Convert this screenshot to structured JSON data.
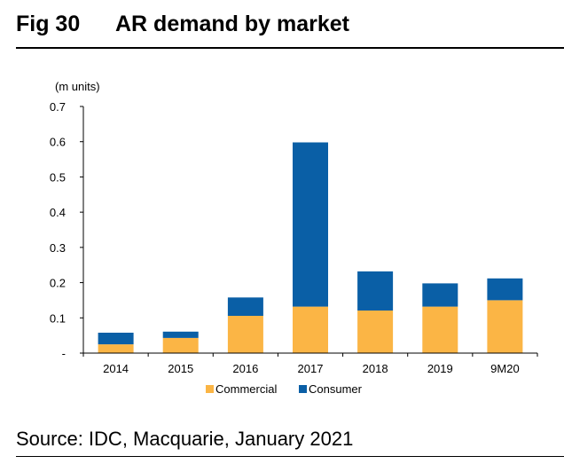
{
  "figure": {
    "label": "Fig 30",
    "title": "AR demand by market"
  },
  "source": "Source: IDC, Macquarie, January 2021",
  "colors": {
    "commercial": "#fbb545",
    "consumer": "#0a5fa6",
    "axis": "#000000"
  },
  "chart_data": {
    "type": "bar",
    "stacked": true,
    "title": "AR demand by market",
    "units_label": "(m units)",
    "categories": [
      "2014",
      "2015",
      "2016",
      "2017",
      "2018",
      "2019",
      "9M20"
    ],
    "series": [
      {
        "name": "Commercial",
        "values": [
          0.025,
          0.043,
          0.106,
          0.132,
          0.121,
          0.132,
          0.15
        ]
      },
      {
        "name": "Consumer",
        "values": [
          0.033,
          0.018,
          0.052,
          0.466,
          0.111,
          0.066,
          0.062
        ]
      }
    ],
    "xlabel": "",
    "ylabel": "(m units)",
    "ylim": [
      0,
      0.7
    ],
    "yticks": [
      0,
      0.1,
      0.2,
      0.3,
      0.4,
      0.5,
      0.6,
      0.7
    ],
    "ytick_labels": [
      "-",
      "0.1",
      "0.2",
      "0.3",
      "0.4",
      "0.5",
      "0.6",
      "0.7"
    ],
    "legend": [
      "Commercial",
      "Consumer"
    ],
    "legend_position": "bottom",
    "grid": false
  }
}
